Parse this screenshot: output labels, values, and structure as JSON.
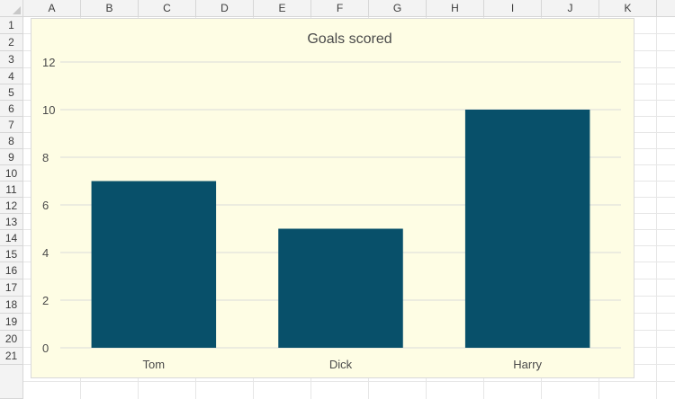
{
  "spreadsheet": {
    "columns": [
      "A",
      "B",
      "C",
      "D",
      "E",
      "F",
      "G",
      "H",
      "I",
      "J",
      "K"
    ],
    "rows": [
      "1",
      "2",
      "3",
      "4",
      "5",
      "6",
      "7",
      "8",
      "9",
      "10",
      "11",
      "12",
      "13",
      "14",
      "15",
      "16",
      "17",
      "18",
      "19",
      "20",
      "21"
    ]
  },
  "colors": {
    "bar": "#08506a",
    "chart_background": "#fefde4",
    "gridline": "#dadada"
  },
  "chart_data": {
    "type": "bar",
    "title": "Goals scored",
    "categories": [
      "Tom",
      "Dick",
      "Harry"
    ],
    "values": [
      7,
      5,
      10
    ],
    "ylim": [
      0,
      12
    ],
    "yticks": [
      "0",
      "2",
      "4",
      "6",
      "8",
      "10",
      "12"
    ],
    "xlabel": "",
    "ylabel": "",
    "grid": true,
    "legend": "none"
  }
}
